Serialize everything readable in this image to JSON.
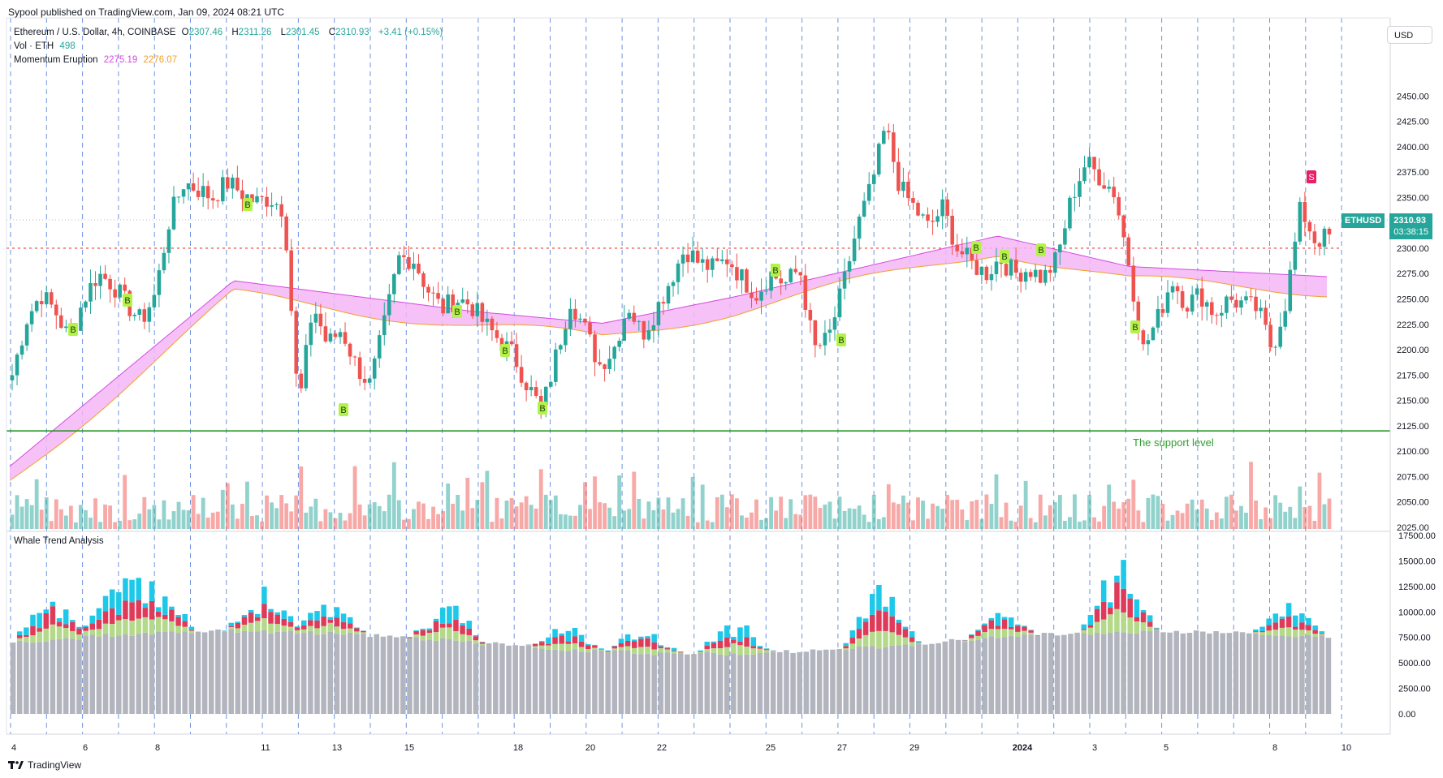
{
  "header": {
    "publisher_line": "Sypool published on TradingView.com, Jan 09, 2024 08:21 UTC"
  },
  "legend": {
    "symbol_line": "Ethereum / U.S. Dollar, 4h, COINBASE",
    "ohlc": {
      "O": "2307.46",
      "H": "2311.26",
      "L": "2301.45",
      "C": "2310.93",
      "change": "+3.41 (+0.15%)"
    },
    "volume_label": "Vol · ETH",
    "volume_value": "498",
    "indicator_label": "Momentum Eruption",
    "indicator_value_1": "2275.19",
    "indicator_value_2": "2276.07"
  },
  "currency_box": "USD",
  "price_tag": {
    "symbol": "ETHUSD",
    "price": "2310.93",
    "countdown": "03:38:15"
  },
  "annotation": "The support level",
  "lower_panel_title": "Whale Trend Analysis",
  "footer": {
    "brand": "TradingView"
  },
  "colors": {
    "up": "#26a69a",
    "down": "#ef5350",
    "band_fill": "#f5b6f5",
    "band_line_1": "#d44ae0",
    "band_line_2": "#f0a02a",
    "support": "#1b8f1b",
    "grid_dashed": "#4a78d6",
    "whale_gray": "#b2b5be",
    "whale_green": "#b5d98a",
    "whale_red": "#e03a5a",
    "whale_cyan": "#1ec8e8",
    "buy_badge": "#b4f24a",
    "sell_badge": "#e91e63"
  },
  "chart_data": [
    {
      "type": "candlestick",
      "title": "Ethereum / U.S. Dollar, 4h, COINBASE",
      "ylim": [
        2025,
        2475
      ],
      "y_ticks": [
        "2450.00",
        "2425.00",
        "2400.00",
        "2375.00",
        "2350.00",
        "2325.00",
        "2300.00",
        "2275.00",
        "2250.00",
        "2225.00",
        "2200.00",
        "2175.00",
        "2150.00",
        "2125.00",
        "2100.00",
        "2075.00",
        "2050.00",
        "2025.00"
      ],
      "x_ticks": [
        "4",
        "6",
        "8",
        "11",
        "13",
        "15",
        "18",
        "20",
        "22",
        "25",
        "27",
        "29",
        "2024",
        "3",
        "5",
        "8",
        "10"
      ],
      "support_level": 2120,
      "dotted_red_level": 2300,
      "close_path": [
        2175,
        2230,
        2255,
        2238,
        2210,
        2250,
        2275,
        2265,
        2245,
        2228,
        2255,
        2330,
        2365,
        2358,
        2350,
        2365,
        2355,
        2345,
        2350,
        2338,
        2140,
        2245,
        2205,
        2220,
        2185,
        2165,
        2225,
        2290,
        2290,
        2260,
        2240,
        2250,
        2245,
        2225,
        2210,
        2195,
        2165,
        2140,
        2195,
        2250,
        2220,
        2185,
        2200,
        2245,
        2215,
        2240,
        2270,
        2300,
        2285,
        2280,
        2290,
        2270,
        2255,
        2275,
        2265,
        2280,
        2200,
        2210,
        2260,
        2320,
        2360,
        2420,
        2360,
        2340,
        2320,
        2340,
        2300,
        2285,
        2275,
        2290,
        2275,
        2280,
        2270,
        2290,
        2350,
        2385,
        2370,
        2355,
        2285,
        2200,
        2230,
        2270,
        2245,
        2255,
        2235,
        2250,
        2245,
        2240,
        2200,
        2250,
        2340,
        2308,
        2311
      ],
      "signals": [
        {
          "type": "B",
          "x": "Dec 4"
        },
        {
          "type": "B",
          "x": "Dec 7"
        },
        {
          "type": "B",
          "x": "Dec 9"
        },
        {
          "type": "B",
          "x": "Dec 13"
        },
        {
          "type": "B",
          "x": "Dec 16"
        },
        {
          "type": "B",
          "x": "Dec 17"
        },
        {
          "type": "B",
          "x": "Dec 18"
        },
        {
          "type": "B",
          "x": "Dec 25"
        },
        {
          "type": "B",
          "x": "Dec 26"
        },
        {
          "type": "B",
          "x": "Dec 30"
        },
        {
          "type": "B",
          "x": "Dec 31"
        },
        {
          "type": "B",
          "x": "Jan 1"
        },
        {
          "type": "B",
          "x": "Jan 4"
        },
        {
          "type": "S",
          "x": "Jan 9"
        }
      ],
      "band": {
        "start": 2085,
        "peak_dec11": 2268,
        "end": 2275
      }
    },
    {
      "type": "bar",
      "title": "Whale Trend Analysis",
      "ylim": [
        0,
        17500
      ],
      "y_ticks": [
        "17500.00",
        "15000.00",
        "12500.00",
        "10000.00",
        "7500.00",
        "5000.00",
        "2500.00",
        "0.00"
      ],
      "series": [
        {
          "name": "",
          "color": "#b2b5be"
        },
        {
          "name": "",
          "color": "#b5d98a"
        },
        {
          "name": "",
          "color": "#e03a5a"
        },
        {
          "name": "",
          "color": "#1ec8e8"
        }
      ],
      "peaks": [
        12500,
        11000,
        10000,
        9000,
        8500,
        10000,
        15000,
        12000,
        10000,
        16000,
        9000,
        8000
      ]
    }
  ]
}
